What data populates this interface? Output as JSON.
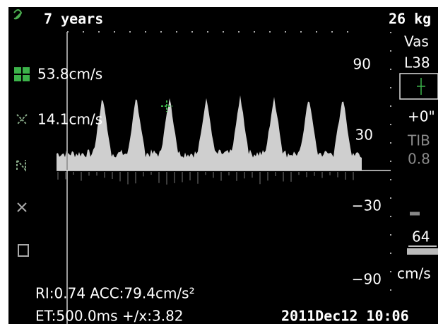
{
  "header": {
    "age": "7 years",
    "weight": "26 kg"
  },
  "measurements": {
    "peak_velocity": "53.8cm/s",
    "end_velocity": "14.1cm/s",
    "indices": "RI:0.74 ACC:79.4cm/s²",
    "timing": "ET:500.0ms +/x:3.82"
  },
  "scale": {
    "labels": [
      "90",
      "30",
      "−30",
      "−90"
    ],
    "unit": "cm/s"
  },
  "settings": {
    "preset": "Vas",
    "probe": "L38",
    "angle": "+0\"",
    "index_label": "TIB",
    "index_value": "0.8",
    "gain": "64"
  },
  "footer": {
    "datetime": "2011Dec12 10:06"
  }
}
